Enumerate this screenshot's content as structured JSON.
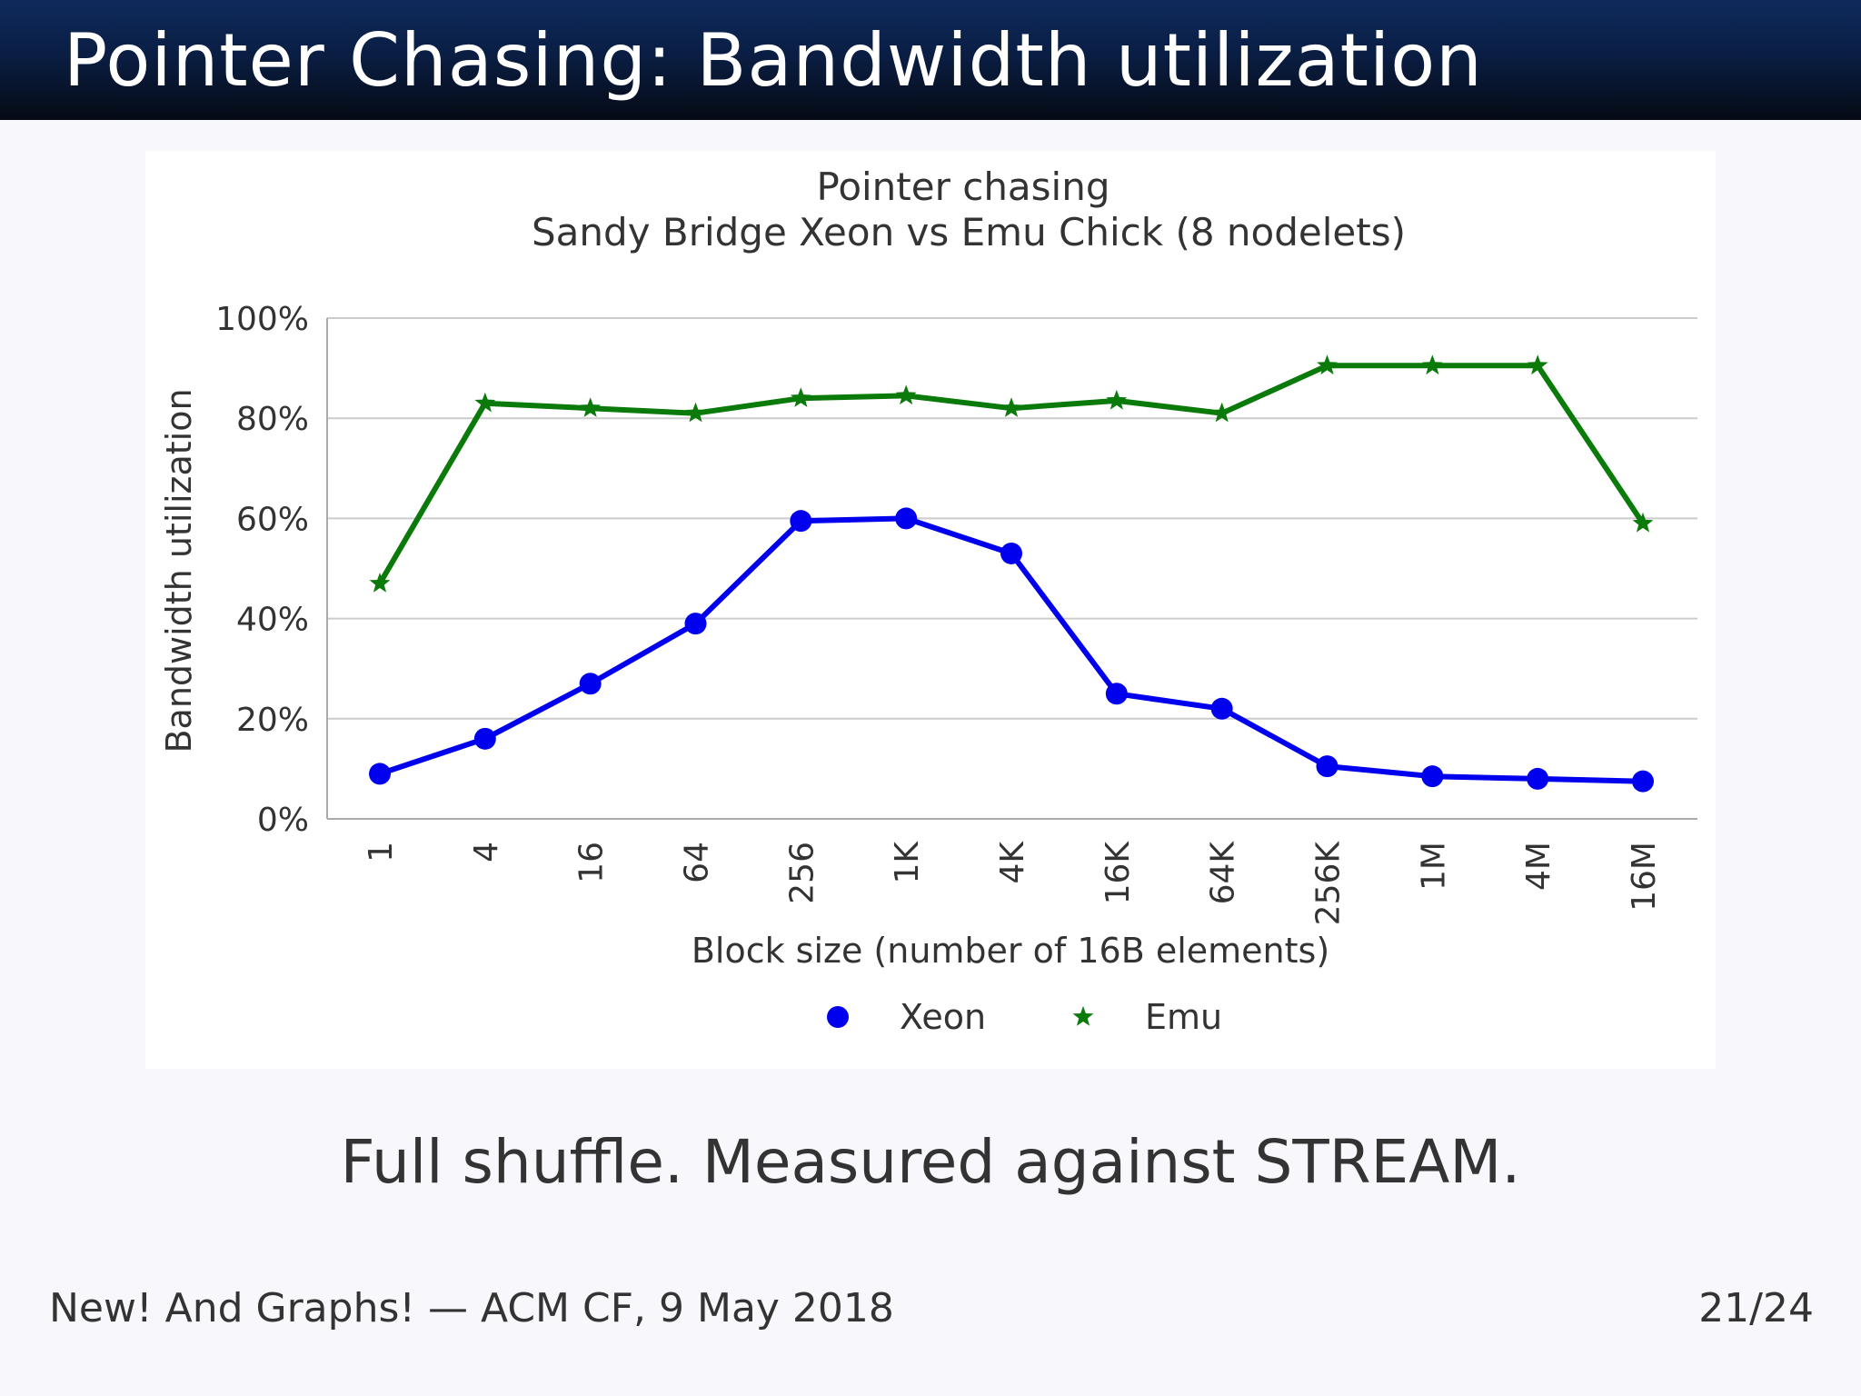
{
  "slide": {
    "title": "Pointer Chasing: Bandwidth utilization",
    "caption": "Full shuffle.  Measured against STREAM.",
    "footer_left": "New! And Graphs! — ACM CF, 9 May 2018",
    "page_number": "21/24"
  },
  "colors": {
    "xeon": "#0000ee",
    "emu": "#0a7a0a",
    "grid": "#cccccc",
    "axis": "#aaaaaa"
  },
  "chart_data": {
    "type": "line",
    "title": "Pointer chasing",
    "subtitle": "Sandy Bridge Xeon vs Emu Chick (8 nodelets)",
    "xlabel": "Block size (number of 16B elements)",
    "ylabel": "Bandwidth utilization",
    "categories": [
      "1",
      "4",
      "16",
      "64",
      "256",
      "1K",
      "4K",
      "16K",
      "64K",
      "256K",
      "1M",
      "4M",
      "16M"
    ],
    "yticks": [
      "0%",
      "20%",
      "40%",
      "60%",
      "80%",
      "100%"
    ],
    "ylim": [
      0,
      100
    ],
    "grid": true,
    "legend_position": "bottom",
    "series": [
      {
        "name": "Xeon",
        "marker": "circle",
        "values": [
          9,
          16,
          27,
          39,
          59.5,
          60,
          53,
          25,
          22,
          10.5,
          8.5,
          8,
          7.5
        ]
      },
      {
        "name": "Emu",
        "marker": "star",
        "values": [
          47,
          83,
          82,
          81,
          84,
          84.5,
          82,
          83.5,
          81,
          90.5,
          90.5,
          90.5,
          59
        ]
      }
    ]
  }
}
